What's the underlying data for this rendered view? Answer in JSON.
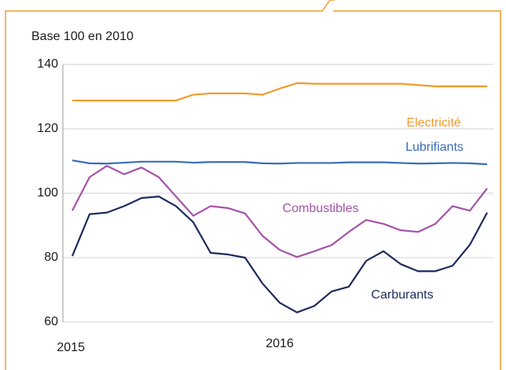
{
  "chart_data": {
    "type": "line",
    "subtitle": "Base 100 en 2010",
    "x": [
      2015,
      2015.0833,
      2015.1667,
      2015.25,
      2015.3333,
      2015.4167,
      2015.5,
      2015.5833,
      2015.6667,
      2015.75,
      2015.8333,
      2015.9167,
      2016,
      2016.0833,
      2016.1667,
      2016.25,
      2016.3333,
      2016.4167,
      2016.5,
      2016.5833,
      2016.6667,
      2016.75,
      2016.8333,
      2016.9167,
      2017
    ],
    "xlim": [
      2015,
      2017
    ],
    "xticks": [
      2015,
      2016
    ],
    "ylim": [
      60,
      140
    ],
    "yticks": [
      60,
      80,
      100,
      120,
      140
    ],
    "grid": true,
    "series": [
      {
        "name": "Electricité",
        "color": "#f39a2b",
        "values": [
          128.8,
          128.8,
          128.8,
          128.8,
          128.8,
          128.8,
          128.8,
          130.6,
          131,
          131,
          131,
          130.6,
          132.5,
          134.2,
          134,
          134,
          134,
          134,
          134,
          134,
          133.6,
          133.2,
          133.2,
          133.2,
          133.2
        ]
      },
      {
        "name": "Lubrifiants",
        "color": "#3a6db5",
        "values": [
          110.2,
          109.3,
          109.2,
          109.5,
          109.8,
          109.8,
          109.8,
          109.5,
          109.7,
          109.7,
          109.7,
          109.3,
          109.2,
          109.4,
          109.4,
          109.4,
          109.6,
          109.6,
          109.6,
          109.4,
          109.2,
          109.3,
          109.4,
          109.3,
          109
        ]
      },
      {
        "name": "Combustibles",
        "color": "#a653a8",
        "values": [
          94.6,
          105,
          108.5,
          105.9,
          108,
          105,
          99,
          93,
          96,
          95.4,
          93.7,
          86.8,
          82.4,
          80.2,
          82,
          83.9,
          88,
          91.7,
          90.5,
          88.5,
          88,
          90.5,
          96,
          94.6,
          101.5
        ]
      },
      {
        "name": "Carburants",
        "color": "#1f2a5e",
        "values": [
          80.5,
          93.5,
          94,
          96,
          98.5,
          99,
          96,
          91,
          81.5,
          81,
          80,
          72,
          66,
          63,
          65,
          69.5,
          71,
          79,
          82,
          78,
          75.8,
          75.8,
          77.5,
          84,
          94
        ]
      }
    ]
  }
}
